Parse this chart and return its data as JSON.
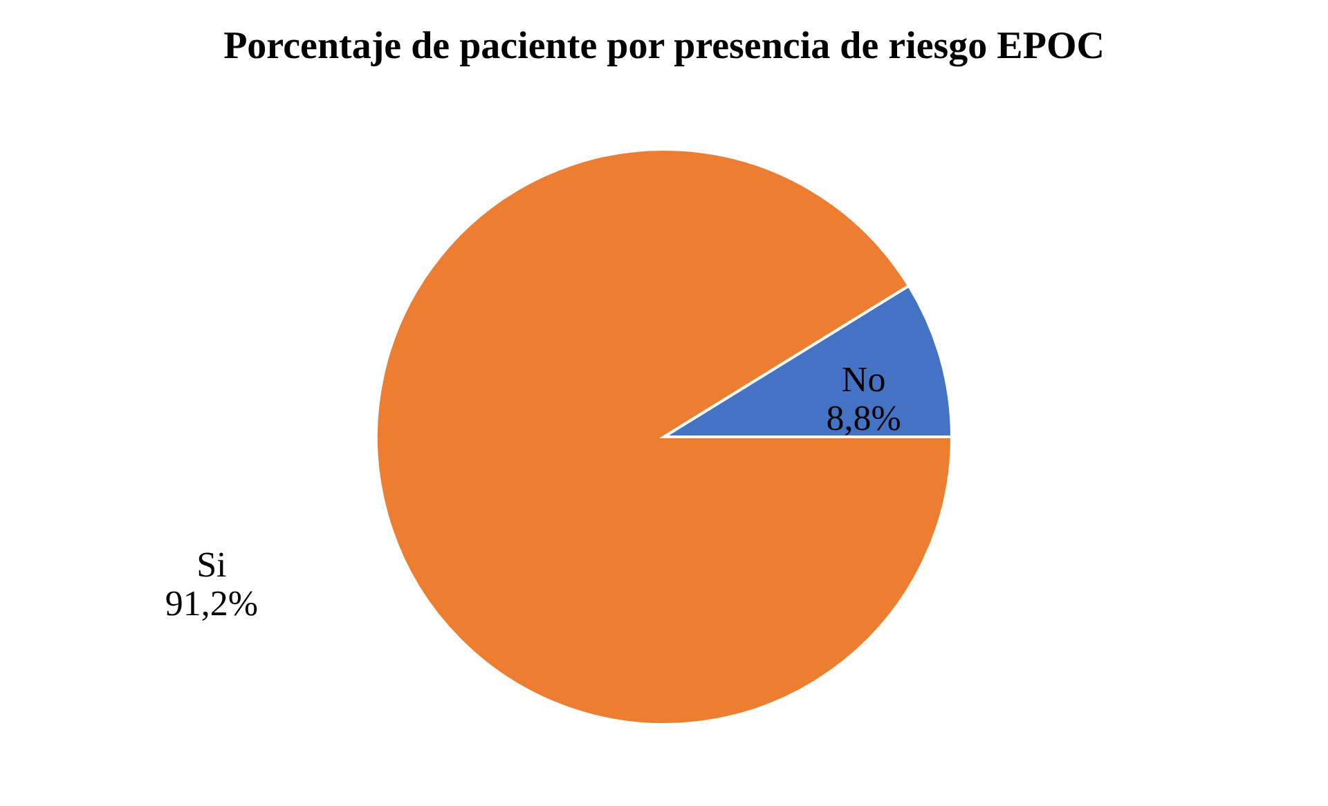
{
  "chart_data": {
    "type": "pie",
    "title": "Porcentaje de paciente por presencia de riesgo EPOC",
    "categories": [
      "Si",
      "No"
    ],
    "values": [
      91.2,
      8.8
    ],
    "colors": [
      "#ed7d31",
      "#4472c4"
    ],
    "value_labels": [
      "91,2%",
      "8,8%"
    ],
    "legend": false
  }
}
